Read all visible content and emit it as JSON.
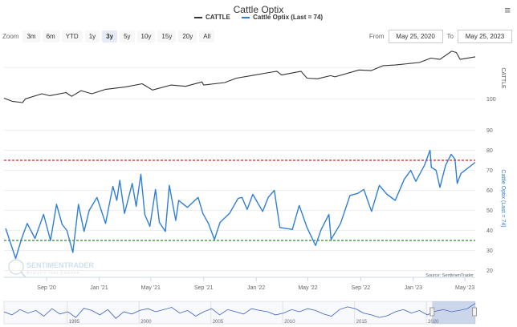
{
  "title": "Cattle Optix",
  "menu_icon": "hamburger-menu-icon",
  "legend": [
    {
      "label": "CATTLE",
      "color": "#333333"
    },
    {
      "label": "Cattle Optix (Last = 74)",
      "color": "#2f7ed8"
    }
  ],
  "zoom": {
    "label": "Zoom",
    "buttons": [
      "3m",
      "6m",
      "YTD",
      "1y",
      "3y",
      "5y",
      "10y",
      "15y",
      "20y",
      "All"
    ],
    "selected": "3y"
  },
  "range": {
    "from_label": "From",
    "from": "May 25, 2020",
    "to_label": "To",
    "to": "May 25, 2023"
  },
  "credits": "Source: SentimenTrader",
  "logo": {
    "name": "SENTIMENTRADER",
    "tagline": "Analysis over Emotion"
  },
  "chart_data": {
    "type": "line",
    "x_range": [
      "2020-05-25",
      "2023-05-25"
    ],
    "x_ticks": [
      {
        "date": "2020-09-01",
        "label": "Sep '20"
      },
      {
        "date": "2021-01-01",
        "label": "Jan '21"
      },
      {
        "date": "2021-05-01",
        "label": "May '21"
      },
      {
        "date": "2021-09-01",
        "label": "Sep '21"
      },
      {
        "date": "2022-01-01",
        "label": "Jan '22"
      },
      {
        "date": "2022-05-01",
        "label": "May '22"
      },
      {
        "date": "2022-09-01",
        "label": "Sep '22"
      },
      {
        "date": "2023-01-01",
        "label": "Jan '23"
      },
      {
        "date": "2023-05-01",
        "label": "May '23"
      }
    ],
    "panes": [
      {
        "ylabel": "CATTLE",
        "ylim": [
          85,
          181
        ],
        "y_ticks": [
          100
        ],
        "gridlines": [
          100,
          150
        ],
        "series": [
          {
            "name": "CATTLE",
            "color": "#333333",
            "points": [
              [
                "2020-05-25",
                101
              ],
              [
                "2020-06-13",
                96
              ],
              [
                "2020-07-07",
                94
              ],
              [
                "2020-07-14",
                100
              ],
              [
                "2020-08-21",
                108
              ],
              [
                "2020-09-08",
                105
              ],
              [
                "2020-10-16",
                110
              ],
              [
                "2020-10-29",
                104
              ],
              [
                "2020-11-20",
                113
              ],
              [
                "2020-12-15",
                108
              ],
              [
                "2021-01-15",
                115
              ],
              [
                "2021-03-04",
                119
              ],
              [
                "2021-04-11",
                124
              ],
              [
                "2021-05-05",
                114
              ],
              [
                "2021-06-17",
                122
              ],
              [
                "2021-07-21",
                120
              ],
              [
                "2021-08-28",
                127
              ],
              [
                "2021-09-01",
                122
              ],
              [
                "2021-10-20",
                126
              ],
              [
                "2021-11-16",
                133
              ],
              [
                "2021-12-20",
                137
              ],
              [
                "2022-01-31",
                142
              ],
              [
                "2022-02-18",
                144
              ],
              [
                "2022-03-01",
                138
              ],
              [
                "2022-04-15",
                144
              ],
              [
                "2022-04-29",
                133
              ],
              [
                "2022-05-23",
                132
              ],
              [
                "2022-06-23",
                137
              ],
              [
                "2022-07-03",
                135
              ],
              [
                "2022-08-28",
                146
              ],
              [
                "2022-09-25",
                145
              ],
              [
                "2022-10-23",
                153
              ],
              [
                "2022-11-20",
                154
              ],
              [
                "2023-01-15",
                158
              ],
              [
                "2023-02-11",
                165
              ],
              [
                "2023-03-04",
                163
              ],
              [
                "2023-03-31",
                176
              ],
              [
                "2023-04-11",
                174
              ],
              [
                "2023-04-20",
                163
              ],
              [
                "2023-05-25",
                167
              ]
            ]
          }
        ]
      },
      {
        "ylabel": "Cattle Optix (Last = 74)",
        "ylim": [
          17,
          95
        ],
        "y_ticks": [
          20,
          30,
          40,
          50,
          60,
          70,
          80,
          90
        ],
        "reference_lines": [
          {
            "value": 75,
            "color": "#e02020",
            "style": "dashed"
          },
          {
            "value": 35,
            "color": "#2a8a2a",
            "style": "dashed"
          }
        ],
        "series": [
          {
            "name": "Cattle Optix (Last = 74)",
            "color": "#2f7ed8",
            "points": [
              [
                "2020-05-29",
                41
              ],
              [
                "2020-06-21",
                26
              ],
              [
                "2020-07-05",
                36
              ],
              [
                "2020-07-18",
                43.5
              ],
              [
                "2020-08-05",
                36
              ],
              [
                "2020-08-25",
                48
              ],
              [
                "2020-09-10",
                35
              ],
              [
                "2020-09-24",
                53
              ],
              [
                "2020-10-07",
                43
              ],
              [
                "2020-10-18",
                40
              ],
              [
                "2020-11-01",
                29
              ],
              [
                "2020-11-14",
                53
              ],
              [
                "2020-11-27",
                39.5
              ],
              [
                "2020-12-09",
                50
              ],
              [
                "2020-12-27",
                56.5
              ],
              [
                "2021-01-16",
                43.5
              ],
              [
                "2021-02-02",
                62
              ],
              [
                "2021-02-11",
                55
              ],
              [
                "2021-02-18",
                65
              ],
              [
                "2021-03-01",
                48.5
              ],
              [
                "2021-03-19",
                63.5
              ],
              [
                "2021-03-28",
                52
              ],
              [
                "2021-04-08",
                68
              ],
              [
                "2021-04-17",
                48
              ],
              [
                "2021-04-29",
                42
              ],
              [
                "2021-05-12",
                60.5
              ],
              [
                "2021-05-21",
                44
              ],
              [
                "2021-06-04",
                39.5
              ],
              [
                "2021-06-13",
                62.5
              ],
              [
                "2021-06-28",
                45
              ],
              [
                "2021-07-05",
                55
              ],
              [
                "2021-07-25",
                51.5
              ],
              [
                "2021-08-19",
                56.5
              ],
              [
                "2021-08-30",
                48.5
              ],
              [
                "2021-09-12",
                43.5
              ],
              [
                "2021-09-26",
                35.5
              ],
              [
                "2021-10-09",
                44
              ],
              [
                "2021-10-31",
                48.5
              ],
              [
                "2021-11-20",
                56
              ],
              [
                "2021-11-29",
                56.5
              ],
              [
                "2021-12-11",
                50.5
              ],
              [
                "2021-12-24",
                58
              ],
              [
                "2022-01-16",
                49.5
              ],
              [
                "2022-01-29",
                56.5
              ],
              [
                "2022-02-12",
                60
              ],
              [
                "2022-02-25",
                41.5
              ],
              [
                "2022-03-26",
                40.5
              ],
              [
                "2022-04-11",
                52.5
              ],
              [
                "2022-04-29",
                41.5
              ],
              [
                "2022-05-19",
                32.5
              ],
              [
                "2022-06-01",
                40.5
              ],
              [
                "2022-06-19",
                48
              ],
              [
                "2022-06-24",
                35.5
              ],
              [
                "2022-07-16",
                43.5
              ],
              [
                "2022-08-07",
                57.5
              ],
              [
                "2022-08-25",
                58.5
              ],
              [
                "2022-09-08",
                60.5
              ],
              [
                "2022-09-26",
                49.5
              ],
              [
                "2022-10-14",
                62.5
              ],
              [
                "2022-11-01",
                58
              ],
              [
                "2022-11-20",
                55
              ],
              [
                "2022-12-11",
                65.5
              ],
              [
                "2022-12-26",
                70
              ],
              [
                "2023-01-07",
                64.5
              ],
              [
                "2023-01-27",
                72.5
              ],
              [
                "2023-02-09",
                80
              ],
              [
                "2023-02-12",
                71.5
              ],
              [
                "2023-02-23",
                70
              ],
              [
                "2023-03-04",
                61.5
              ],
              [
                "2023-03-17",
                72.5
              ],
              [
                "2023-03-30",
                78
              ],
              [
                "2023-04-08",
                75.5
              ],
              [
                "2023-04-13",
                63.5
              ],
              [
                "2023-04-22",
                68.5
              ],
              [
                "2023-05-25",
                74
              ]
            ]
          }
        ]
      }
    ],
    "navigator": {
      "x_range": [
        1990.6,
        2023.4
      ],
      "ticks": [
        1995,
        2000,
        2005,
        2010,
        2015,
        2020
      ],
      "selected": [
        2020.4,
        2023.4
      ],
      "values": [
        55,
        48,
        60,
        52,
        58,
        45,
        62,
        50,
        55,
        42,
        63,
        58,
        48,
        60,
        40,
        55,
        50,
        58,
        62,
        55,
        60,
        65,
        52,
        58,
        45,
        55,
        62,
        48,
        60,
        55,
        50,
        62,
        58,
        55,
        48,
        52,
        60,
        55,
        62,
        58,
        50,
        45,
        60,
        66,
        62,
        52,
        48,
        42,
        46,
        55,
        60,
        52,
        58,
        48,
        56,
        60,
        55,
        58,
        62,
        74
      ]
    }
  }
}
